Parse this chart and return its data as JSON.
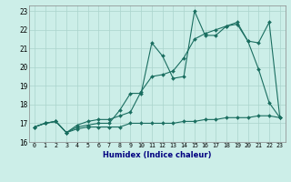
{
  "xlabel": "Humidex (Indice chaleur)",
  "background_color": "#cceee8",
  "grid_color": "#aad4cc",
  "line_color": "#1a6e60",
  "x_ticks": [
    0,
    1,
    2,
    3,
    4,
    5,
    6,
    7,
    8,
    9,
    10,
    11,
    12,
    13,
    14,
    15,
    16,
    17,
    18,
    19,
    20,
    21,
    22,
    23
  ],
  "ylim": [
    16,
    23.3
  ],
  "xlim": [
    -0.5,
    23.5
  ],
  "yticks": [
    16,
    17,
    18,
    19,
    20,
    21,
    22,
    23
  ],
  "line1_y": [
    16.8,
    17.0,
    17.1,
    16.5,
    16.7,
    16.8,
    16.8,
    16.8,
    16.8,
    17.0,
    17.0,
    17.0,
    17.0,
    17.0,
    17.1,
    17.1,
    17.2,
    17.2,
    17.3,
    17.3,
    17.3,
    17.4,
    17.4,
    17.3
  ],
  "line2_y": [
    16.8,
    17.0,
    17.1,
    16.5,
    16.8,
    16.9,
    17.0,
    17.0,
    17.7,
    18.6,
    18.6,
    21.3,
    20.6,
    19.4,
    19.5,
    23.0,
    21.7,
    21.7,
    22.2,
    22.3,
    21.4,
    19.9,
    18.1,
    17.3
  ],
  "line3_y": [
    16.8,
    17.0,
    17.1,
    16.5,
    16.9,
    17.1,
    17.2,
    17.2,
    17.4,
    17.6,
    18.7,
    19.5,
    19.6,
    19.8,
    20.5,
    21.5,
    21.8,
    22.0,
    22.2,
    22.4,
    21.4,
    21.3,
    22.4,
    17.3
  ]
}
